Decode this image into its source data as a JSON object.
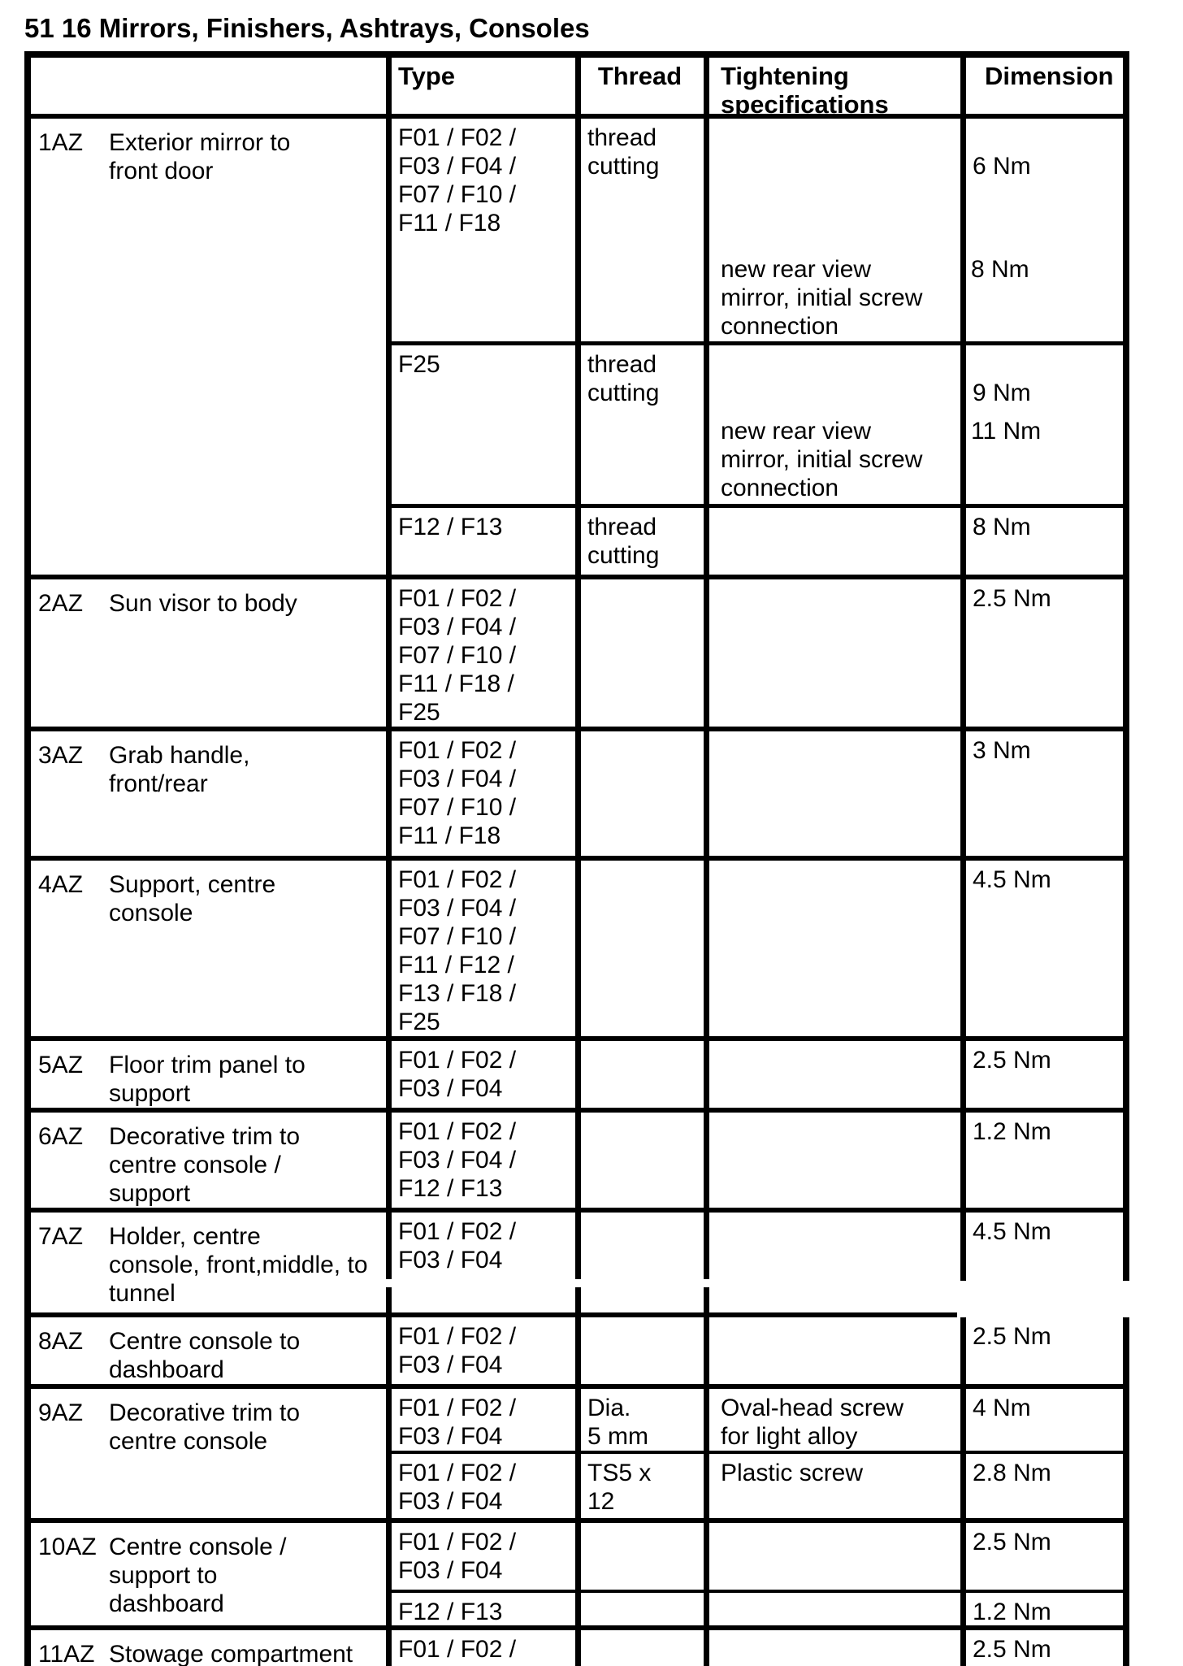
{
  "title": "51 16 Mirrors, Finishers, Ashtrays, Consoles",
  "table": {
    "headers": {
      "name": "",
      "type": "Type",
      "thread": "Thread",
      "tightening": "Tightening\nspecifications",
      "dimension": "Dimension"
    },
    "rows": [
      {
        "id": "1AZ",
        "desc": "Exterior mirror to\nfront door",
        "subrows": [
          {
            "type": "F01 / F02 /\nF03 / F04 /\nF07 / F10 /\nF11 / F18",
            "thread": "thread\ncutting",
            "tight_late": "new rear view\nmirror, initial screw\nconnection",
            "dim": "6 Nm",
            "dim_late": "8 Nm"
          },
          {
            "type": "F25",
            "thread": "thread\ncutting",
            "tight_late": "new rear view\nmirror, initial screw\nconnection",
            "dim": "9 Nm",
            "dim_late": "11 Nm"
          },
          {
            "type": "F12 / F13",
            "thread": "thread\ncutting",
            "dim": "8 Nm"
          }
        ]
      },
      {
        "id": "2AZ",
        "desc": "Sun visor to body",
        "subrows": [
          {
            "type": "F01 / F02 /\nF03 / F04 /\nF07 / F10 /\nF11 / F18 /\nF25",
            "dim": "2.5 Nm"
          }
        ]
      },
      {
        "id": "3AZ",
        "desc": "Grab handle,\nfront/rear",
        "subrows": [
          {
            "type": "F01 / F02 /\nF03 / F04 /\nF07 / F10 /\nF11 / F18",
            "dim": "3 Nm"
          }
        ]
      },
      {
        "id": "4AZ",
        "desc": "Support, centre\nconsole",
        "subrows": [
          {
            "type": "F01 / F02 /\nF03 / F04 /\nF07 / F10 /\nF11 / F12 /\nF13 / F18 /\nF25",
            "dim": "4.5 Nm"
          }
        ]
      },
      {
        "id": "5AZ",
        "desc": "Floor trim panel to\nsupport",
        "subrows": [
          {
            "type": "F01 / F02 /\nF03 / F04",
            "dim": "2.5 Nm"
          }
        ]
      },
      {
        "id": "6AZ",
        "desc": "Decorative trim to\ncentre console /\nsupport",
        "subrows": [
          {
            "type": "F01 / F02 /\nF03 / F04 /\nF12 / F13",
            "dim": "1.2 Nm"
          }
        ]
      },
      {
        "id": "7AZ",
        "desc": "Holder, centre\nconsole, front,",
        "desc2": "middle, to tunnel",
        "subrows": [
          {
            "type": "F01 / F02 /\nF03 / F04",
            "dim": "4.5 Nm"
          }
        ]
      },
      {
        "id": "8AZ",
        "desc": "Centre console to\ndashboard",
        "subrows": [
          {
            "type": "F01 / F02 /\nF03 / F04",
            "dim": "2.5 Nm"
          }
        ]
      },
      {
        "id": "9AZ",
        "desc": "Decorative trim to\ncentre console",
        "subrows": [
          {
            "type": "F01 / F02 /\nF03 / F04",
            "thread": "Dia.\n5 mm",
            "tight": "Oval-head screw\nfor light alloy",
            "dim": "4 Nm"
          },
          {
            "type": "F01 / F02 /\nF03 / F04",
            "thread": "TS5 x\n12",
            "tight": "Plastic screw",
            "dim": "2.8 Nm"
          }
        ]
      },
      {
        "id": "10AZ",
        "desc": "Centre console /\nsupport to\ndashboard",
        "subrows": [
          {
            "type": "F01 / F02 /\nF03 / F04",
            "dim": "2.5 Nm"
          },
          {
            "type": "F12 / F13",
            "dim": "1.2 Nm"
          }
        ]
      },
      {
        "id": "11AZ",
        "desc": "Stowage compartment",
        "subrows": [
          {
            "type": "F01 / F02 /",
            "dim": "2.5 Nm"
          }
        ]
      }
    ]
  }
}
